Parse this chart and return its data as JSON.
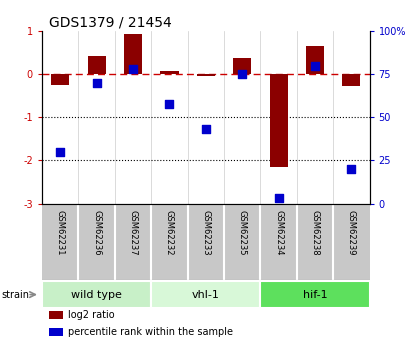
{
  "title": "GDS1379 / 21454",
  "samples": [
    "GSM62231",
    "GSM62236",
    "GSM62237",
    "GSM62232",
    "GSM62233",
    "GSM62235",
    "GSM62234",
    "GSM62238",
    "GSM62239"
  ],
  "log2_ratio": [
    -0.25,
    0.42,
    0.93,
    0.08,
    -0.05,
    0.38,
    -2.15,
    0.65,
    -0.28
  ],
  "percentile_rank": [
    30,
    70,
    78,
    58,
    43,
    75,
    3,
    80,
    20
  ],
  "groups": [
    {
      "label": "wild type",
      "indices": [
        0,
        1,
        2
      ],
      "color": "#c8f0c8"
    },
    {
      "label": "vhl-1",
      "indices": [
        3,
        4,
        5
      ],
      "color": "#d8f8d8"
    },
    {
      "label": "hif-1",
      "indices": [
        6,
        7,
        8
      ],
      "color": "#5de05d"
    }
  ],
  "bar_color": "#8B0000",
  "dot_color": "#0000CC",
  "dashed_line_color": "#CC0000",
  "ylim_left": [
    -3,
    1
  ],
  "ylim_right": [
    0,
    100
  ],
  "yticks_left": [
    -3,
    -2,
    -1,
    0,
    1
  ],
  "yticks_right": [
    0,
    25,
    50,
    75,
    100
  ],
  "yticklabels_right": [
    "0",
    "25",
    "50",
    "75",
    "100%"
  ],
  "dotted_lines": [
    -1,
    -2
  ],
  "legend_items": [
    {
      "label": "log2 ratio",
      "color": "#8B0000"
    },
    {
      "label": "percentile rank within the sample",
      "color": "#0000CC"
    }
  ],
  "strain_label": "strain",
  "background_color": "#ffffff",
  "plot_bg_color": "#ffffff",
  "label_bg_color": "#c8c8c8",
  "bar_width": 0.5
}
